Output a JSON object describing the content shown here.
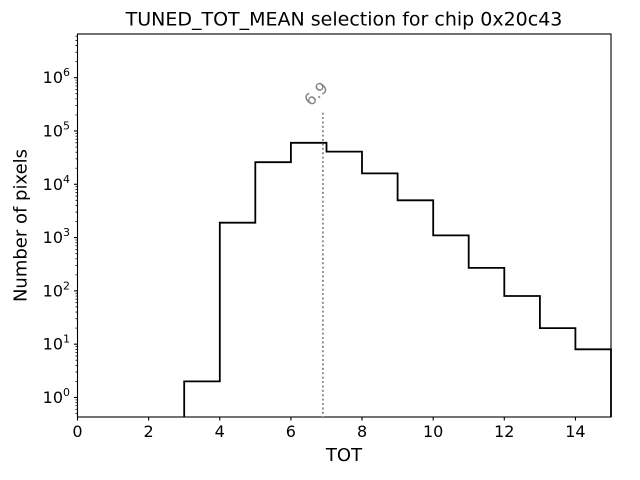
{
  "chart_data": {
    "type": "histogram",
    "title": "TUNED_TOT_MEAN selection for chip 0x20c43",
    "xlabel": "TOT",
    "ylabel": "Number of pixels",
    "xlim": [
      0,
      15
    ],
    "ylim": [
      0.43,
      6600000
    ],
    "yscale": "log",
    "grid": false,
    "legend": null,
    "x_ticks": [
      0,
      2,
      4,
      6,
      8,
      10,
      12,
      14
    ],
    "y_tick_exponents": [
      0,
      1,
      2,
      3,
      4,
      5,
      6
    ],
    "bin_edges": [
      3,
      4,
      5,
      6,
      7,
      8,
      9,
      10,
      11,
      12,
      13,
      14,
      15
    ],
    "counts": [
      2,
      1900,
      26000,
      60000,
      41000,
      16000,
      5000,
      1100,
      270,
      80,
      20,
      8
    ],
    "line_color": "#000000",
    "vline": {
      "x": 6.9,
      "label": "6.9",
      "top": 220000,
      "color": "#808080",
      "style": "dotted"
    }
  },
  "colors": {
    "background": "#ffffff",
    "axes": "#000000",
    "tick_labels": "#000000",
    "histogram_line": "#000000",
    "vline": "#808080",
    "annotation": "#808080"
  }
}
